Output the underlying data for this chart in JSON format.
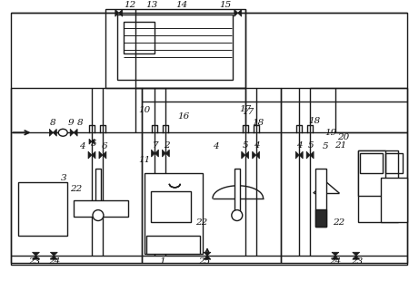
{
  "bg_color": "#ffffff",
  "lc": "#1a1a1a",
  "lw": 1.0,
  "fig_w": 4.61,
  "fig_h": 3.1,
  "dpi": 100
}
